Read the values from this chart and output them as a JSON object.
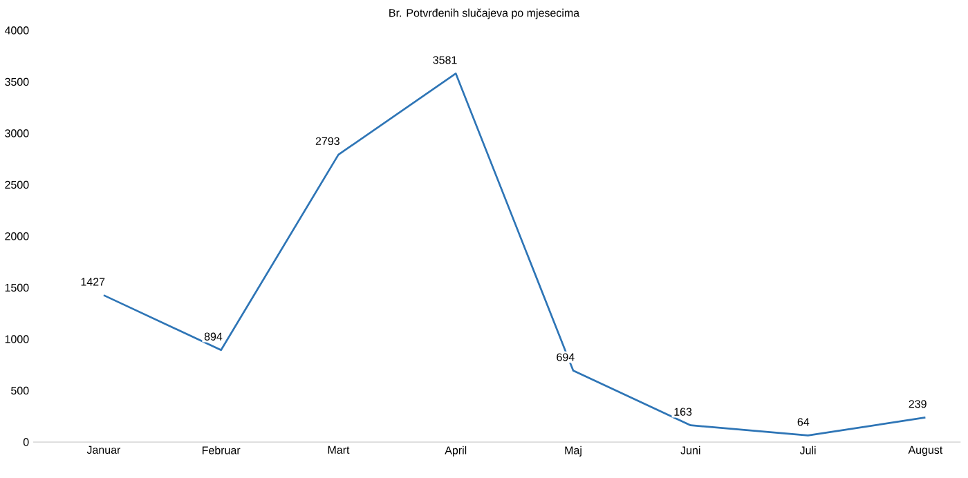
{
  "chart_data": {
    "type": "line",
    "title": "Br. Potvrđenih slučajeva po mjesecima",
    "categories": [
      "Januar",
      "Februar",
      "Mart",
      "April",
      "Maj",
      "Juni",
      "Juli",
      "August"
    ],
    "values": [
      1427,
      894,
      2793,
      3581,
      694,
      163,
      64,
      239
    ],
    "color": "#2e75b6",
    "ylim": [
      0,
      4000
    ],
    "yticks": [
      0,
      500,
      1000,
      1500,
      2000,
      2500,
      3000,
      3500,
      4000
    ],
    "marker": "none",
    "line_style": "solid",
    "data_labels": true
  }
}
